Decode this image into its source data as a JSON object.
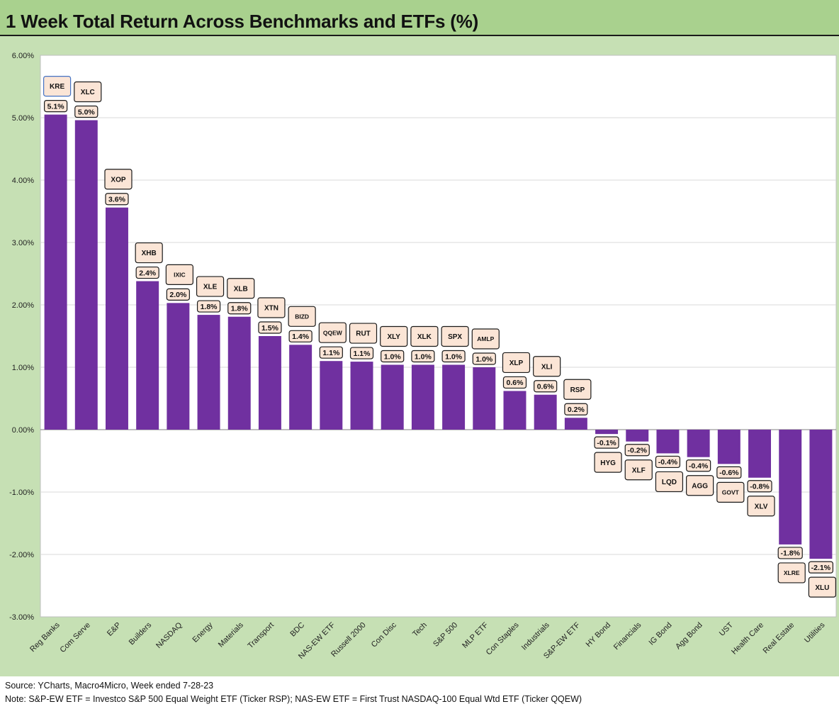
{
  "title": "1 Week Total Return Across Benchmarks and ETFs (%)",
  "source": "Source: YCharts, Macro4Micro, Week ended 7-28-23",
  "note": "Note: S&P-EW ETF = Investco S&P 500 Equal Weight ETF (Ticker RSP); NAS-EW ETF = First Trust NASDAQ-100 Equal Wtd ETF (Ticker QQEW)",
  "colors": {
    "frame": "#c6e0b4",
    "title_bar": "#a9d18e",
    "bar": "#7030a0",
    "label_box": "#fbe5d6",
    "grid": "#d9d9d9"
  },
  "chart_data": {
    "type": "bar",
    "title": "1 Week Total Return Across Benchmarks and ETFs (%)",
    "categories": [
      "Reg Banks",
      "Com Serve",
      "E&P",
      "Builders",
      "NASDAQ",
      "Energy",
      "Materials",
      "Transport",
      "BDC",
      "NAS-EW ETF",
      "Russell 2000",
      "Con Disc",
      "Tech",
      "S&P 500",
      "MLP ETF",
      "Con Staples",
      "Industrials",
      "S&P-EW ETF",
      "HY Bond",
      "Financials",
      "IG Bond",
      "Agg Bond",
      "UST",
      "Health Care",
      "Real Estate",
      "Utilities"
    ],
    "tickers": [
      "KRE",
      "XLC",
      "XOP",
      "XHB",
      "IXIC",
      "XLE",
      "XLB",
      "XTN",
      "BIZD",
      "QQEW",
      "RUT",
      "XLY",
      "XLK",
      "SPX",
      "AMLP",
      "XLP",
      "XLI",
      "RSP",
      "HYG",
      "XLF",
      "LQD",
      "AGG",
      "GOVT",
      "XLV",
      "XLRE",
      "XLU"
    ],
    "values": [
      5.05,
      4.96,
      3.56,
      2.38,
      2.03,
      1.84,
      1.81,
      1.5,
      1.36,
      1.1,
      1.09,
      1.04,
      1.04,
      1.04,
      1.0,
      0.62,
      0.56,
      0.19,
      -0.07,
      -0.19,
      -0.38,
      -0.44,
      -0.55,
      -0.77,
      -1.84,
      -2.07
    ],
    "value_labels": [
      "5.1%",
      "5.0%",
      "3.6%",
      "2.4%",
      "2.0%",
      "1.8%",
      "1.8%",
      "1.5%",
      "1.4%",
      "1.1%",
      "1.1%",
      "1.0%",
      "1.0%",
      "1.0%",
      "1.0%",
      "0.6%",
      "0.6%",
      "0.2%",
      "-0.1%",
      "-0.2%",
      "-0.4%",
      "-0.4%",
      "-0.6%",
      "-0.8%",
      "-1.8%",
      "-2.1%"
    ],
    "y_ticks": [
      6,
      5,
      4,
      3,
      2,
      1,
      0,
      -1,
      -2,
      -3
    ],
    "y_tick_labels": [
      "6.00%",
      "5.00%",
      "4.00%",
      "3.00%",
      "2.00%",
      "1.00%",
      "0.00%",
      "-1.00%",
      "-2.00%",
      "-3.00%"
    ],
    "ylim": [
      -3,
      6
    ],
    "grid": true,
    "legend": "none"
  }
}
